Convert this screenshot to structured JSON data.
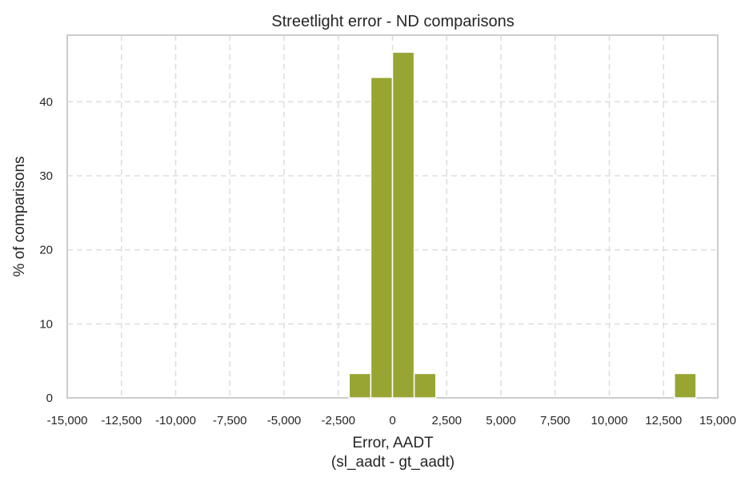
{
  "chart_data": {
    "type": "bar",
    "title": "Streetlight error - ND comparisons",
    "xlabel": "Error, AADT",
    "xlabel_line2": "(sl_aadt - gt_aadt)",
    "ylabel": "% of comparisons",
    "xlim": [
      -15000,
      15000
    ],
    "ylim": [
      0,
      49
    ],
    "grid": true,
    "x_ticks": [
      -15000,
      -12500,
      -10000,
      -7500,
      -5000,
      -2500,
      0,
      2500,
      5000,
      7500,
      10000,
      12500,
      15000
    ],
    "x_tick_labels": [
      "-15,000",
      "-12,500",
      "-10,000",
      "-7,500",
      "-5,000",
      "-2,500",
      "0",
      "2,500",
      "5,000",
      "7,500",
      "10,000",
      "12,500",
      "15,000"
    ],
    "y_ticks": [
      0,
      10,
      20,
      30,
      40
    ],
    "y_tick_labels": [
      "0",
      "10",
      "20",
      "30",
      "40"
    ],
    "bar_color": "#98a533",
    "bins": [
      {
        "start": -2000,
        "end": -1000,
        "value": 3.3
      },
      {
        "start": -1000,
        "end": 0,
        "value": 43.3
      },
      {
        "start": 0,
        "end": 1000,
        "value": 46.7
      },
      {
        "start": 1000,
        "end": 2000,
        "value": 3.3
      },
      {
        "start": 13000,
        "end": 14000,
        "value": 3.3
      }
    ]
  }
}
